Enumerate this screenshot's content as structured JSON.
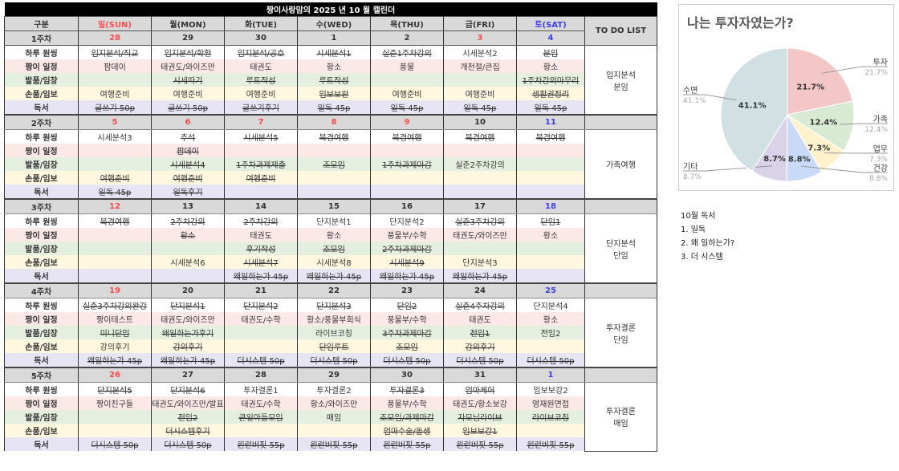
{
  "calendar": {
    "title": "짱이사랑맘의 2025 년 10 월 캘린더",
    "header": {
      "label": "구분",
      "days": [
        "일(SUN)",
        "월(MON)",
        "화(TUE)",
        "수(WED)",
        "목(THU)",
        "금(FRI)",
        "토(SAT)"
      ],
      "todo": "TO DO LIST"
    },
    "row_labels": [
      "하루 원씽",
      "짱이 일정",
      "발품/임장",
      "손품/임보",
      "독서"
    ],
    "colors": {
      "sunday_holiday": "#ff4b4b",
      "saturday": "#3d3df0"
    },
    "weeks": [
      {
        "label": "1주차",
        "dates": [
          {
            "d": "28",
            "c": "red"
          },
          {
            "d": "29"
          },
          {
            "d": "30"
          },
          {
            "d": "1"
          },
          {
            "d": "2"
          },
          {
            "d": "3",
            "c": "red"
          },
          {
            "d": "4",
            "c": "blue"
          }
        ],
        "todo": "입지분석\n분임",
        "rows": [
          [
            {
              "t": "임지분석/직교",
              "done": true
            },
            {
              "t": "임지분석/학환",
              "done": true
            },
            {
              "t": "임지분석/공호",
              "done": true
            },
            {
              "t": "시세분석1",
              "done": true
            },
            {
              "t": "실준1주차강의",
              "done": true
            },
            {
              "t": "시세분석2"
            },
            {
              "t": "분임",
              "done": true
            }
          ],
          [
            {
              "t": "팜데이"
            },
            {
              "t": "태권도/와이즈만"
            },
            {
              "t": "태권도"
            },
            {
              "t": "황소"
            },
            {
              "t": "풍물"
            },
            {
              "t": "개천절/큰집"
            },
            {
              "t": "황소"
            }
          ],
          [
            {
              "t": ""
            },
            {
              "t": "시세따기",
              "done": true
            },
            {
              "t": "루트작성",
              "done": true
            },
            {
              "t": "루트작성",
              "done": true
            },
            {
              "t": ""
            },
            {
              "t": ""
            },
            {
              "t": "1주차강의마무리",
              "done": true
            }
          ],
          [
            {
              "t": "여행준비"
            },
            {
              "t": "여행준비"
            },
            {
              "t": "여행준비"
            },
            {
              "t": "임보보완",
              "done": true
            },
            {
              "t": "여행준비"
            },
            {
              "t": "여행준비"
            },
            {
              "t": "생활권정리",
              "done": true
            }
          ],
          [
            {
              "t": "글쓰기 50p",
              "done": true
            },
            {
              "t": "글쓰기 50p",
              "done": true
            },
            {
              "t": "글쓰기후기",
              "done": true
            },
            {
              "t": "일독 45p",
              "done": true
            },
            {
              "t": "일독 45p",
              "done": true
            },
            {
              "t": "일독 45p",
              "done": true
            },
            {
              "t": "일독 45p",
              "done": true
            }
          ]
        ]
      },
      {
        "label": "2주차",
        "dates": [
          {
            "d": "5",
            "c": "red"
          },
          {
            "d": "6",
            "c": "red"
          },
          {
            "d": "7",
            "c": "red"
          },
          {
            "d": "8",
            "c": "red"
          },
          {
            "d": "9",
            "c": "red"
          },
          {
            "d": "10"
          },
          {
            "d": "11",
            "c": "blue"
          }
        ],
        "todo": "가족여행",
        "rows": [
          [
            {
              "t": "시세분석3"
            },
            {
              "t": "추석",
              "done": true
            },
            {
              "t": "시세분석5",
              "done": true
            },
            {
              "t": "북경여행",
              "done": true
            },
            {
              "t": "북경여행",
              "done": true
            },
            {
              "t": "북경여행",
              "done": true
            },
            {
              "t": "북경여행",
              "done": true
            }
          ],
          [
            {
              "t": ""
            },
            {
              "t": "팜데이",
              "done": true
            },
            {
              "t": ""
            },
            {
              "t": ""
            },
            {
              "t": ""
            },
            {
              "t": ""
            },
            {
              "t": ""
            }
          ],
          [
            {
              "t": ""
            },
            {
              "t": "시세분석4",
              "done": true
            },
            {
              "t": "1주차과제제출",
              "done": true
            },
            {
              "t": "조모임",
              "done": true
            },
            {
              "t": "1주차과제마감",
              "done": true
            },
            {
              "t": "실준2주차강의"
            },
            {
              "t": ""
            }
          ],
          [
            {
              "t": "여행준비",
              "done": true
            },
            {
              "t": "여행준비",
              "done": true
            },
            {
              "t": "여행준비",
              "done": true
            },
            {
              "t": ""
            },
            {
              "t": ""
            },
            {
              "t": ""
            },
            {
              "t": ""
            }
          ],
          [
            {
              "t": "일독 45p",
              "done": true
            },
            {
              "t": "일독후기",
              "done": true
            },
            {
              "t": ""
            },
            {
              "t": ""
            },
            {
              "t": ""
            },
            {
              "t": ""
            },
            {
              "t": ""
            }
          ]
        ]
      },
      {
        "label": "3주차",
        "dates": [
          {
            "d": "12",
            "c": "red"
          },
          {
            "d": "13"
          },
          {
            "d": "14"
          },
          {
            "d": "15"
          },
          {
            "d": "16"
          },
          {
            "d": "17"
          },
          {
            "d": "18",
            "c": "blue"
          }
        ],
        "todo": "단지분석\n단임",
        "rows": [
          [
            {
              "t": "북경여행",
              "done": true
            },
            {
              "t": "2주차강의",
              "done": true
            },
            {
              "t": "2주차강의",
              "done": true
            },
            {
              "t": "단지분석1"
            },
            {
              "t": "단지분석2"
            },
            {
              "t": "실준3주차강의",
              "done": true
            },
            {
              "t": "단임1",
              "done": true
            }
          ],
          [
            {
              "t": ""
            },
            {
              "t": "황소",
              "done": true
            },
            {
              "t": "태권도"
            },
            {
              "t": "황소"
            },
            {
              "t": "풍물부/수학"
            },
            {
              "t": "태권도/와이즈만"
            },
            {
              "t": "황소"
            }
          ],
          [
            {
              "t": ""
            },
            {
              "t": ""
            },
            {
              "t": "후기작성",
              "done": true
            },
            {
              "t": "조모임",
              "done": true
            },
            {
              "t": "2주차과제마감",
              "done": true
            },
            {
              "t": ""
            },
            {
              "t": ""
            }
          ],
          [
            {
              "t": ""
            },
            {
              "t": "시세분석6"
            },
            {
              "t": "시세분석7",
              "done": true
            },
            {
              "t": "시세분석8"
            },
            {
              "t": "시세분석9",
              "done": true
            },
            {
              "t": "단지분석3"
            },
            {
              "t": ""
            }
          ],
          [
            {
              "t": ""
            },
            {
              "t": ""
            },
            {
              "t": "왜일하는가 45p",
              "done": true
            },
            {
              "t": "왜일하는가 45p",
              "done": true
            },
            {
              "t": "왜일하는가 45p",
              "done": true
            },
            {
              "t": "왜일하는가 45p",
              "done": true
            },
            {
              "t": ""
            }
          ]
        ]
      },
      {
        "label": "4주차",
        "dates": [
          {
            "d": "19",
            "c": "red"
          },
          {
            "d": "20"
          },
          {
            "d": "21"
          },
          {
            "d": "22"
          },
          {
            "d": "23"
          },
          {
            "d": "24"
          },
          {
            "d": "25",
            "c": "blue"
          }
        ],
        "todo": "투자결론\n단임",
        "rows": [
          [
            {
              "t": "실준3주차강의완강",
              "done": true
            },
            {
              "t": "단지분석1",
              "done": true
            },
            {
              "t": "단지분석2",
              "done": true
            },
            {
              "t": "단지분석3",
              "done": true
            },
            {
              "t": "단임2",
              "done": true
            },
            {
              "t": "실준4주차강의",
              "done": true
            },
            {
              "t": "단지분석4"
            }
          ],
          [
            {
              "t": "짱이테스트"
            },
            {
              "t": "태권도/와이즈만"
            },
            {
              "t": "태권도/수학"
            },
            {
              "t": "황소/풍물부회식"
            },
            {
              "t": "풍물부/수학"
            },
            {
              "t": "태권도"
            },
            {
              "t": "황소"
            }
          ],
          [
            {
              "t": "미니단임",
              "done": true
            },
            {
              "t": "왜일하는가후기",
              "done": true
            },
            {
              "t": ""
            },
            {
              "t": "라이브코칭"
            },
            {
              "t": "3주차과제마감",
              "done": true
            },
            {
              "t": "전임1",
              "done": true
            },
            {
              "t": "전임2"
            }
          ],
          [
            {
              "t": "강의후기"
            },
            {
              "t": "강의후기",
              "done": true
            },
            {
              "t": ""
            },
            {
              "t": "단임루트",
              "done": true
            },
            {
              "t": "조모임",
              "done": true
            },
            {
              "t": "강의후기",
              "done": true
            },
            {
              "t": ""
            }
          ],
          [
            {
              "t": "왜일하는가 45p",
              "done": true
            },
            {
              "t": "왜일하는가 45p",
              "done": true
            },
            {
              "t": "더시스템 50p",
              "done": true
            },
            {
              "t": "더시스템 50p",
              "done": true
            },
            {
              "t": "더시스템 50p",
              "done": true
            },
            {
              "t": "더시스템 50p",
              "done": true
            },
            {
              "t": "더시스템 50p",
              "done": true
            }
          ]
        ]
      },
      {
        "label": "5주차",
        "dates": [
          {
            "d": "26",
            "c": "red"
          },
          {
            "d": "27"
          },
          {
            "d": "28"
          },
          {
            "d": "29"
          },
          {
            "d": "30"
          },
          {
            "d": "31"
          },
          {
            "d": "1",
            "c": "blue"
          }
        ],
        "todo": "투자결론\n매임",
        "rows": [
          [
            {
              "t": "단지분석5",
              "done": true
            },
            {
              "t": "단지분석6",
              "done": true
            },
            {
              "t": "투자결론1"
            },
            {
              "t": "투자결론2"
            },
            {
              "t": "투자결론3",
              "done": true
            },
            {
              "t": "엄마케어",
              "done": true
            },
            {
              "t": "임보보강2"
            }
          ],
          [
            {
              "t": "짱이친구들"
            },
            {
              "t": "태권도/와이즈만/발표"
            },
            {
              "t": "태권도/수학"
            },
            {
              "t": "황소/와이즈만"
            },
            {
              "t": "풍물부/수학"
            },
            {
              "t": "태권도/황소보강"
            },
            {
              "t": "영재원면접"
            }
          ],
          [
            {
              "t": ""
            },
            {
              "t": "전임2",
              "done": true
            },
            {
              "t": "큰일아들모임",
              "done": true
            },
            {
              "t": "매임"
            },
            {
              "t": "조모임/과제마감",
              "done": true
            },
            {
              "t": "자모님라이브",
              "done": true
            },
            {
              "t": "라이브코칭",
              "done": true
            }
          ],
          [
            {
              "t": ""
            },
            {
              "t": "더시스템후기",
              "done": true
            },
            {
              "t": ""
            },
            {
              "t": ""
            },
            {
              "t": "엄마수술/돌생",
              "done": true
            },
            {
              "t": "임보보강1",
              "done": true
            },
            {
              "t": ""
            }
          ],
          [
            {
              "t": "더시스템 50p",
              "done": true
            },
            {
              "t": "더시스템 50p",
              "done": true
            },
            {
              "t": "원런버핏 55p",
              "done": true
            },
            {
              "t": "원런버핏 55p",
              "done": true
            },
            {
              "t": "원런버핏 55p",
              "done": true
            },
            {
              "t": "원런버핏 55p",
              "done": true
            },
            {
              "t": "원런버핏 55p",
              "done": true
            }
          ]
        ]
      }
    ]
  },
  "chart_data": {
    "type": "pie",
    "title": "나는 투자자였는가?",
    "slices": [
      {
        "label": "투자",
        "value": 21.7,
        "pct": "21.7%",
        "color": "#f4c7c7"
      },
      {
        "label": "가족",
        "value": 12.4,
        "pct": "12.4%",
        "color": "#d9ead3"
      },
      {
        "label": "업무",
        "value": 7.3,
        "pct": "7.3%",
        "color": "#fff2cc"
      },
      {
        "label": "건강",
        "value": 8.8,
        "pct": "8.8%",
        "color": "#c9daf8"
      },
      {
        "label": "기타",
        "value": 8.7,
        "pct": "8.7%",
        "color": "#d9d2e9"
      },
      {
        "label": "수면",
        "value": 41.1,
        "pct": "41.1%",
        "color": "#d0e0e3"
      }
    ]
  },
  "reading": {
    "title": "10월 독서",
    "items": [
      "1. 일독",
      "2. 왜 일하는가?",
      "3. 더 시스템"
    ]
  }
}
